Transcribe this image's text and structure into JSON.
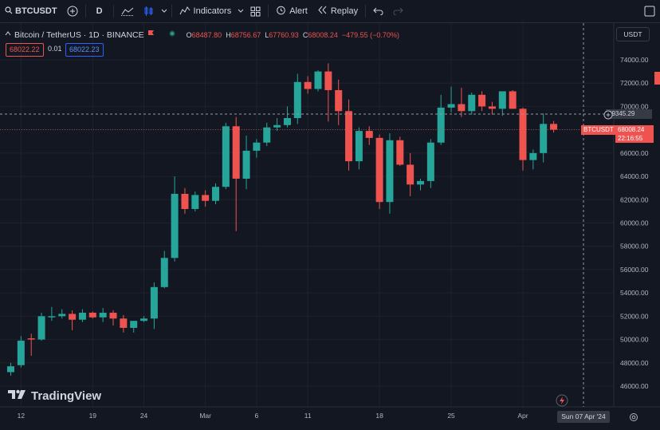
{
  "toolbar": {
    "symbol": "BTCUSDT",
    "interval": "D",
    "indicators_label": "Indicators",
    "alert_label": "Alert",
    "replay_label": "Replay"
  },
  "legend": {
    "title": "Bitcoin / TetherUS · 1D · BINANCE",
    "open_label": "O",
    "open": "68487.80",
    "high_label": "H",
    "high": "68756.67",
    "low_label": "L",
    "low": "67760.93",
    "close_label": "C",
    "close": "68008.24",
    "change": "−479.55 (−0.70%)",
    "sell_price": "68022.22",
    "spread": "0.01",
    "buy_price": "68022.23"
  },
  "currency": "USDT",
  "crosshair_price": "69345.29",
  "last_symbol": "BTCUSDT",
  "last_price": "68008.24",
  "countdown": "22:16:55",
  "crosshair_date": "Sun 07 Apr '24",
  "brand": "TradingView",
  "colors": {
    "up": "#26a69a",
    "down": "#ef5350",
    "background": "#131722",
    "grid": "#1e222d"
  },
  "chart_data": {
    "type": "candlestick",
    "title": "Bitcoin / TetherUS · 1D · BINANCE",
    "ylim": [
      45000,
      76000
    ],
    "y_ticks": [
      46000,
      48000,
      50000,
      52000,
      54000,
      56000,
      58000,
      60000,
      62000,
      64000,
      66000,
      68000,
      70000,
      72000,
      74000
    ],
    "x_ticks": [
      {
        "label": "12",
        "index": 1
      },
      {
        "label": "19",
        "index": 8
      },
      {
        "label": "24",
        "index": 13
      },
      {
        "label": "Mar",
        "index": 19
      },
      {
        "label": "6",
        "index": 24
      },
      {
        "label": "11",
        "index": 29
      },
      {
        "label": "18",
        "index": 36
      },
      {
        "label": "25",
        "index": 43
      },
      {
        "label": "Apr",
        "index": 50
      }
    ],
    "candles": [
      {
        "o": 47200,
        "h": 48000,
        "l": 46900,
        "c": 47700
      },
      {
        "o": 47800,
        "h": 50300,
        "l": 47600,
        "c": 49900
      },
      {
        "o": 50100,
        "h": 50500,
        "l": 48600,
        "c": 50000
      },
      {
        "o": 50000,
        "h": 52300,
        "l": 49900,
        "c": 52000
      },
      {
        "o": 51900,
        "h": 52800,
        "l": 51600,
        "c": 52000
      },
      {
        "o": 52000,
        "h": 52600,
        "l": 51800,
        "c": 52200
      },
      {
        "o": 52200,
        "h": 52500,
        "l": 50800,
        "c": 51700
      },
      {
        "o": 51700,
        "h": 52600,
        "l": 51500,
        "c": 52300
      },
      {
        "o": 52300,
        "h": 52400,
        "l": 51800,
        "c": 51900
      },
      {
        "o": 51900,
        "h": 52700,
        "l": 51500,
        "c": 52300
      },
      {
        "o": 52300,
        "h": 52500,
        "l": 51200,
        "c": 51800
      },
      {
        "o": 51800,
        "h": 52100,
        "l": 50600,
        "c": 51000
      },
      {
        "o": 51000,
        "h": 51600,
        "l": 50600,
        "c": 51600
      },
      {
        "o": 51600,
        "h": 52000,
        "l": 51500,
        "c": 51800
      },
      {
        "o": 51800,
        "h": 54900,
        "l": 50900,
        "c": 54500
      },
      {
        "o": 54500,
        "h": 57600,
        "l": 54400,
        "c": 57000
      },
      {
        "o": 57000,
        "h": 64000,
        "l": 56700,
        "c": 62500
      },
      {
        "o": 62500,
        "h": 63000,
        "l": 60800,
        "c": 61200
      },
      {
        "o": 61200,
        "h": 62700,
        "l": 61000,
        "c": 62400
      },
      {
        "o": 62400,
        "h": 62800,
        "l": 61400,
        "c": 61900
      },
      {
        "o": 61900,
        "h": 63400,
        "l": 61600,
        "c": 63100
      },
      {
        "o": 63100,
        "h": 68600,
        "l": 62900,
        "c": 68300
      },
      {
        "o": 68300,
        "h": 69100,
        "l": 59300,
        "c": 63800
      },
      {
        "o": 63800,
        "h": 67500,
        "l": 62900,
        "c": 66200
      },
      {
        "o": 66200,
        "h": 67200,
        "l": 65600,
        "c": 66900
      },
      {
        "o": 66900,
        "h": 68600,
        "l": 66600,
        "c": 68200
      },
      {
        "o": 68200,
        "h": 69000,
        "l": 67900,
        "c": 68400
      },
      {
        "o": 68400,
        "h": 70000,
        "l": 68200,
        "c": 69000
      },
      {
        "o": 69000,
        "h": 72800,
        "l": 68500,
        "c": 72100
      },
      {
        "o": 72100,
        "h": 72600,
        "l": 71100,
        "c": 71500
      },
      {
        "o": 71500,
        "h": 73100,
        "l": 71300,
        "c": 73000
      },
      {
        "o": 73000,
        "h": 73700,
        "l": 68700,
        "c": 71400
      },
      {
        "o": 71400,
        "h": 72300,
        "l": 68400,
        "c": 69600
      },
      {
        "o": 69600,
        "h": 70600,
        "l": 64500,
        "c": 65300
      },
      {
        "o": 65300,
        "h": 68200,
        "l": 64600,
        "c": 67900
      },
      {
        "o": 67900,
        "h": 68300,
        "l": 66700,
        "c": 67300
      },
      {
        "o": 67300,
        "h": 67600,
        "l": 61200,
        "c": 61800
      },
      {
        "o": 61800,
        "h": 67700,
        "l": 60800,
        "c": 67100
      },
      {
        "o": 67100,
        "h": 67400,
        "l": 64900,
        "c": 65000
      },
      {
        "o": 65000,
        "h": 66000,
        "l": 62300,
        "c": 63300
      },
      {
        "o": 63300,
        "h": 63800,
        "l": 62800,
        "c": 63600
      },
      {
        "o": 63600,
        "h": 67200,
        "l": 63000,
        "c": 66900
      },
      {
        "o": 66900,
        "h": 71000,
        "l": 66700,
        "c": 69900
      },
      {
        "o": 69900,
        "h": 71700,
        "l": 69500,
        "c": 70200
      },
      {
        "o": 70200,
        "h": 71600,
        "l": 69100,
        "c": 69600
      },
      {
        "o": 69600,
        "h": 71200,
        "l": 69300,
        "c": 71000
      },
      {
        "o": 71000,
        "h": 71300,
        "l": 69600,
        "c": 70000
      },
      {
        "o": 70000,
        "h": 70400,
        "l": 69300,
        "c": 69800
      },
      {
        "o": 69800,
        "h": 71300,
        "l": 69200,
        "c": 71300
      },
      {
        "o": 71300,
        "h": 71400,
        "l": 69800,
        "c": 69800
      },
      {
        "o": 69800,
        "h": 69900,
        "l": 64500,
        "c": 65400
      },
      {
        "o": 65400,
        "h": 66300,
        "l": 64600,
        "c": 66000
      },
      {
        "o": 66000,
        "h": 69400,
        "l": 65200,
        "c": 68500
      },
      {
        "o": 68500,
        "h": 68757,
        "l": 67761,
        "c": 68008
      }
    ]
  }
}
